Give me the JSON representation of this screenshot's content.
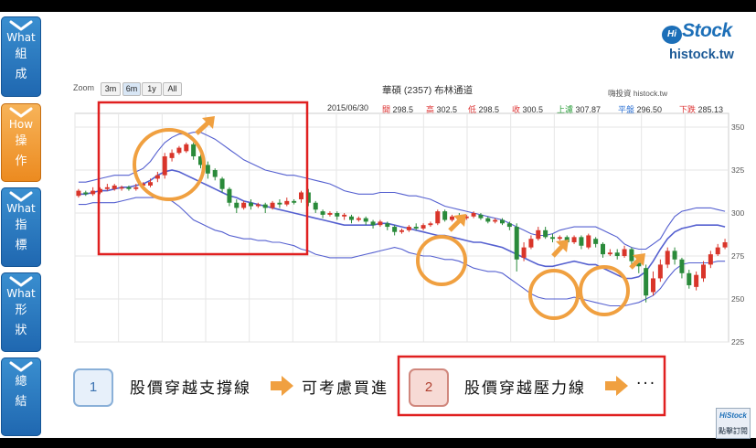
{
  "nav": [
    {
      "label": "What",
      "chars": [
        "組",
        "成"
      ],
      "active": false
    },
    {
      "label": "How",
      "chars": [
        "操",
        "作"
      ],
      "active": true
    },
    {
      "label": "What",
      "chars": [
        "指",
        "標"
      ],
      "active": false
    },
    {
      "label": "What",
      "chars": [
        "形",
        "狀"
      ],
      "active": false
    },
    {
      "label": "",
      "chars": [
        "總",
        "結"
      ],
      "active": false
    }
  ],
  "logo": {
    "hi": "Hi",
    "brand": "Stock",
    "url": "histock.tw"
  },
  "zoom": {
    "label": "Zoom",
    "buttons": [
      "3m",
      "6m",
      "1y",
      "All"
    ],
    "selected": "6m"
  },
  "chart_data": {
    "type": "candlestick",
    "title": "華碩 (2357) 布林通道",
    "source": "嗨投資 histock.tw",
    "date": "2015/06/30",
    "ohlc_labels": {
      "open": "開",
      "high": "高",
      "low": "低",
      "close": "收"
    },
    "ohlc": {
      "open": "298.5",
      "high": "302.5",
      "low": "298.5",
      "close": "300.5"
    },
    "bands": {
      "upper_label": "上濾",
      "upper": "307.87",
      "mid_label": "平盤",
      "mid": "296.50",
      "lower_label": "下跌",
      "lower": "285.13"
    },
    "ylim": [
      225,
      358
    ],
    "yticks": [
      350,
      325,
      300,
      275,
      250,
      225
    ],
    "upper_band": [
      318,
      318,
      319,
      320,
      321,
      322,
      322,
      322,
      324,
      326,
      330,
      336,
      341,
      344,
      346,
      346,
      347,
      347,
      345,
      343,
      340,
      337,
      334,
      331,
      329,
      327,
      325,
      324,
      323,
      322,
      322,
      321,
      320,
      319,
      318,
      317,
      315,
      313,
      312,
      311,
      311,
      311,
      312,
      312,
      312,
      311,
      310,
      310,
      309,
      308,
      306,
      304,
      303,
      302,
      301,
      300,
      299,
      298,
      297,
      296,
      294,
      292,
      290,
      288,
      287,
      287,
      288,
      290,
      291,
      292,
      292,
      292,
      292,
      290,
      288,
      286,
      282,
      280,
      279,
      279,
      282,
      285,
      292,
      298,
      301,
      302,
      303,
      303,
      303,
      302,
      301
    ],
    "middle_band": [
      311,
      311,
      312,
      313,
      313,
      314,
      315,
      315,
      316,
      317,
      319,
      322,
      324,
      325,
      324,
      322,
      320,
      318,
      316,
      314,
      312,
      310,
      309,
      307,
      306,
      305,
      304,
      303,
      302,
      301,
      300,
      299,
      298,
      297,
      296,
      295,
      294,
      293,
      293,
      293,
      293,
      293,
      294,
      294,
      293,
      292,
      291,
      290,
      289,
      288,
      287,
      287,
      286,
      285,
      284,
      283,
      283,
      282,
      281,
      280,
      278,
      276,
      274,
      272,
      270,
      269,
      269,
      270,
      271,
      272,
      271,
      270,
      270,
      268,
      266,
      264,
      262,
      262,
      263,
      266,
      272,
      279,
      285,
      289,
      291,
      292,
      293,
      293,
      293,
      293,
      292
    ],
    "lower_band": [
      305,
      305,
      306,
      306,
      306,
      306,
      307,
      308,
      309,
      309,
      309,
      309,
      308,
      307,
      304,
      300,
      296,
      294,
      292,
      290,
      289,
      287,
      286,
      285,
      285,
      284,
      284,
      283,
      283,
      282,
      281,
      279,
      278,
      276,
      275,
      274,
      274,
      274,
      274,
      275,
      276,
      277,
      278,
      279,
      280,
      279,
      277,
      276,
      275,
      275,
      274,
      273,
      273,
      272,
      270,
      268,
      267,
      266,
      266,
      265,
      262,
      259,
      256,
      253,
      251,
      250,
      250,
      250,
      250,
      251,
      250,
      249,
      248,
      247,
      246,
      246,
      246,
      247,
      248,
      250,
      252,
      256,
      262,
      267,
      270,
      271,
      271,
      271,
      271,
      272,
      272
    ],
    "candles": [
      [
        310,
        313,
        309,
        314
      ],
      [
        312,
        311,
        310,
        313
      ],
      [
        311,
        313,
        310,
        315
      ],
      [
        312,
        314,
        311,
        315
      ],
      [
        314,
        315,
        313,
        317
      ],
      [
        314,
        316,
        313,
        317
      ],
      [
        315,
        315,
        313,
        316
      ],
      [
        315,
        314,
        313,
        316
      ],
      [
        314,
        315,
        313,
        317
      ],
      [
        316,
        317,
        315,
        318
      ],
      [
        316,
        318,
        315,
        320
      ],
      [
        320,
        322,
        318,
        324
      ],
      [
        322,
        333,
        320,
        335
      ],
      [
        332,
        335,
        330,
        337
      ],
      [
        335,
        338,
        334,
        339
      ],
      [
        336,
        340,
        335,
        341
      ],
      [
        340,
        333,
        331,
        341
      ],
      [
        333,
        328,
        326,
        334
      ],
      [
        328,
        323,
        320,
        330
      ],
      [
        325,
        321,
        319,
        326
      ],
      [
        320,
        314,
        312,
        321
      ],
      [
        314,
        306,
        304,
        315
      ],
      [
        306,
        303,
        300,
        308
      ],
      [
        303,
        306,
        302,
        307
      ],
      [
        306,
        304,
        302,
        308
      ],
      [
        304,
        305,
        303,
        306
      ],
      [
        305,
        303,
        300,
        306
      ],
      [
        303,
        306,
        302,
        307
      ],
      [
        306,
        305,
        303,
        308
      ],
      [
        305,
        307,
        304,
        309
      ],
      [
        307,
        306,
        305,
        308
      ],
      [
        308,
        312,
        306,
        313
      ],
      [
        312,
        306,
        304,
        314
      ],
      [
        306,
        302,
        300,
        307
      ],
      [
        301,
        299,
        297,
        302
      ],
      [
        299,
        300,
        298,
        301
      ],
      [
        300,
        298,
        296,
        301
      ],
      [
        298,
        299,
        296,
        300
      ],
      [
        298,
        296,
        294,
        299
      ],
      [
        296,
        297,
        295,
        298
      ],
      [
        297,
        295,
        293,
        298
      ],
      [
        295,
        293,
        291,
        296
      ],
      [
        293,
        295,
        292,
        296
      ],
      [
        294,
        292,
        290,
        295
      ],
      [
        292,
        289,
        287,
        293
      ],
      [
        289,
        290,
        288,
        291
      ],
      [
        290,
        292,
        289,
        293
      ],
      [
        292,
        291,
        290,
        294
      ],
      [
        291,
        293,
        290,
        294
      ],
      [
        293,
        294,
        292,
        295
      ],
      [
        294,
        301,
        293,
        302
      ],
      [
        301,
        296,
        295,
        302
      ],
      [
        296,
        298,
        295,
        299
      ],
      [
        298,
        297,
        296,
        300
      ],
      [
        297,
        298,
        296,
        299
      ],
      [
        298,
        300,
        297,
        301
      ],
      [
        299,
        297,
        296,
        300
      ],
      [
        297,
        295,
        294,
        298
      ],
      [
        295,
        296,
        294,
        297
      ],
      [
        296,
        294,
        293,
        297
      ],
      [
        294,
        292,
        290,
        295
      ],
      [
        292,
        273,
        266,
        294
      ],
      [
        274,
        280,
        272,
        283
      ],
      [
        280,
        285,
        279,
        287
      ],
      [
        285,
        290,
        284,
        292
      ],
      [
        290,
        286,
        285,
        292
      ],
      [
        286,
        285,
        283,
        288
      ],
      [
        285,
        286,
        284,
        287
      ],
      [
        286,
        283,
        281,
        287
      ],
      [
        283,
        286,
        282,
        287
      ],
      [
        286,
        281,
        279,
        287
      ],
      [
        280,
        287,
        279,
        288
      ],
      [
        285,
        282,
        280,
        286
      ],
      [
        282,
        276,
        274,
        283
      ],
      [
        276,
        277,
        275,
        279
      ],
      [
        277,
        275,
        273,
        279
      ],
      [
        275,
        279,
        274,
        281
      ],
      [
        279,
        272,
        270,
        280
      ],
      [
        271,
        269,
        265,
        272
      ],
      [
        268,
        252,
        248,
        270
      ],
      [
        254,
        262,
        252,
        266
      ],
      [
        262,
        270,
        260,
        273
      ],
      [
        270,
        278,
        268,
        280
      ],
      [
        278,
        273,
        270,
        280
      ],
      [
        273,
        265,
        262,
        274
      ],
      [
        265,
        258,
        256,
        267
      ],
      [
        257,
        264,
        255,
        266
      ],
      [
        262,
        270,
        260,
        272
      ],
      [
        270,
        276,
        268,
        278
      ],
      [
        276,
        280,
        275,
        282
      ],
      [
        280,
        283,
        279,
        285
      ]
    ]
  },
  "annotations": {
    "box1": "",
    "box2": ""
  },
  "steps": [
    {
      "num": "1",
      "text": "股價穿越支撐線",
      "result": "可考慮買進"
    },
    {
      "num": "2",
      "text": "股價穿越壓力線",
      "result": "···"
    }
  ],
  "subscribe": {
    "logo": "HiStock",
    "label": "點擊訂閱"
  },
  "colors": {
    "up": "#d9352a",
    "down": "#2a8a3a",
    "band": "#5560d0",
    "highlight_red": "#e02020",
    "highlight_orange": "#f0a040"
  }
}
